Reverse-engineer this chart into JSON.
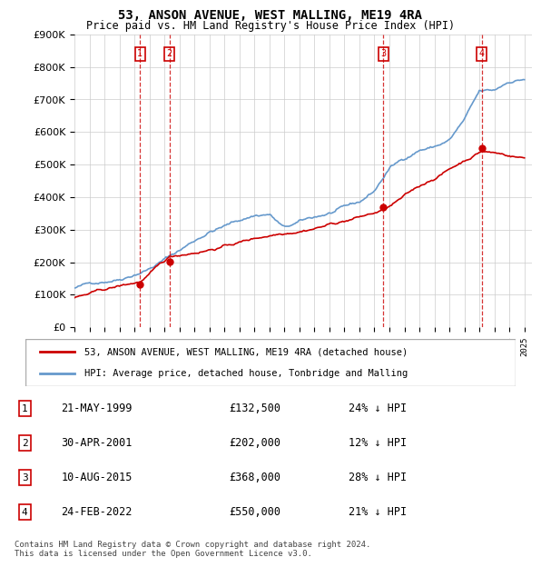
{
  "title": "53, ANSON AVENUE, WEST MALLING, ME19 4RA",
  "subtitle": "Price paid vs. HM Land Registry's House Price Index (HPI)",
  "ylabel_ticks": [
    "£0",
    "£100K",
    "£200K",
    "£300K",
    "£400K",
    "£500K",
    "£600K",
    "£700K",
    "£800K",
    "£900K"
  ],
  "ylim": [
    0,
    900000
  ],
  "yticks": [
    0,
    100000,
    200000,
    300000,
    400000,
    500000,
    600000,
    700000,
    800000,
    900000
  ],
  "sale_dates": [
    1999.38,
    2001.33,
    2015.6,
    2022.15
  ],
  "sale_prices": [
    132500,
    202000,
    368000,
    550000
  ],
  "sale_labels": [
    "1",
    "2",
    "3",
    "4"
  ],
  "sale_info": [
    {
      "label": "1",
      "date": "21-MAY-1999",
      "price": "£132,500",
      "pct": "24% ↓ HPI"
    },
    {
      "label": "2",
      "date": "30-APR-2001",
      "price": "£202,000",
      "pct": "12% ↓ HPI"
    },
    {
      "label": "3",
      "date": "10-AUG-2015",
      "price": "£368,000",
      "pct": "28% ↓ HPI"
    },
    {
      "label": "4",
      "date": "24-FEB-2022",
      "price": "£550,000",
      "pct": "21% ↓ HPI"
    }
  ],
  "red_line_color": "#cc0000",
  "blue_line_color": "#6699cc",
  "vline_color": "#cc0000",
  "box_color": "#cc0000",
  "grid_color": "#cccccc",
  "bg_color": "#ffffff",
  "legend_line1": "53, ANSON AVENUE, WEST MALLING, ME19 4RA (detached house)",
  "legend_line2": "HPI: Average price, detached house, Tonbridge and Malling",
  "footnote": "Contains HM Land Registry data © Crown copyright and database right 2024.\nThis data is licensed under the Open Government Licence v3.0.",
  "xmin": 1995.0,
  "xmax": 2025.5,
  "xticks": [
    1995,
    1996,
    1997,
    1998,
    1999,
    2000,
    2001,
    2002,
    2003,
    2004,
    2005,
    2006,
    2007,
    2008,
    2009,
    2010,
    2011,
    2012,
    2013,
    2014,
    2015,
    2016,
    2017,
    2018,
    2019,
    2020,
    2021,
    2022,
    2023,
    2024,
    2025
  ]
}
